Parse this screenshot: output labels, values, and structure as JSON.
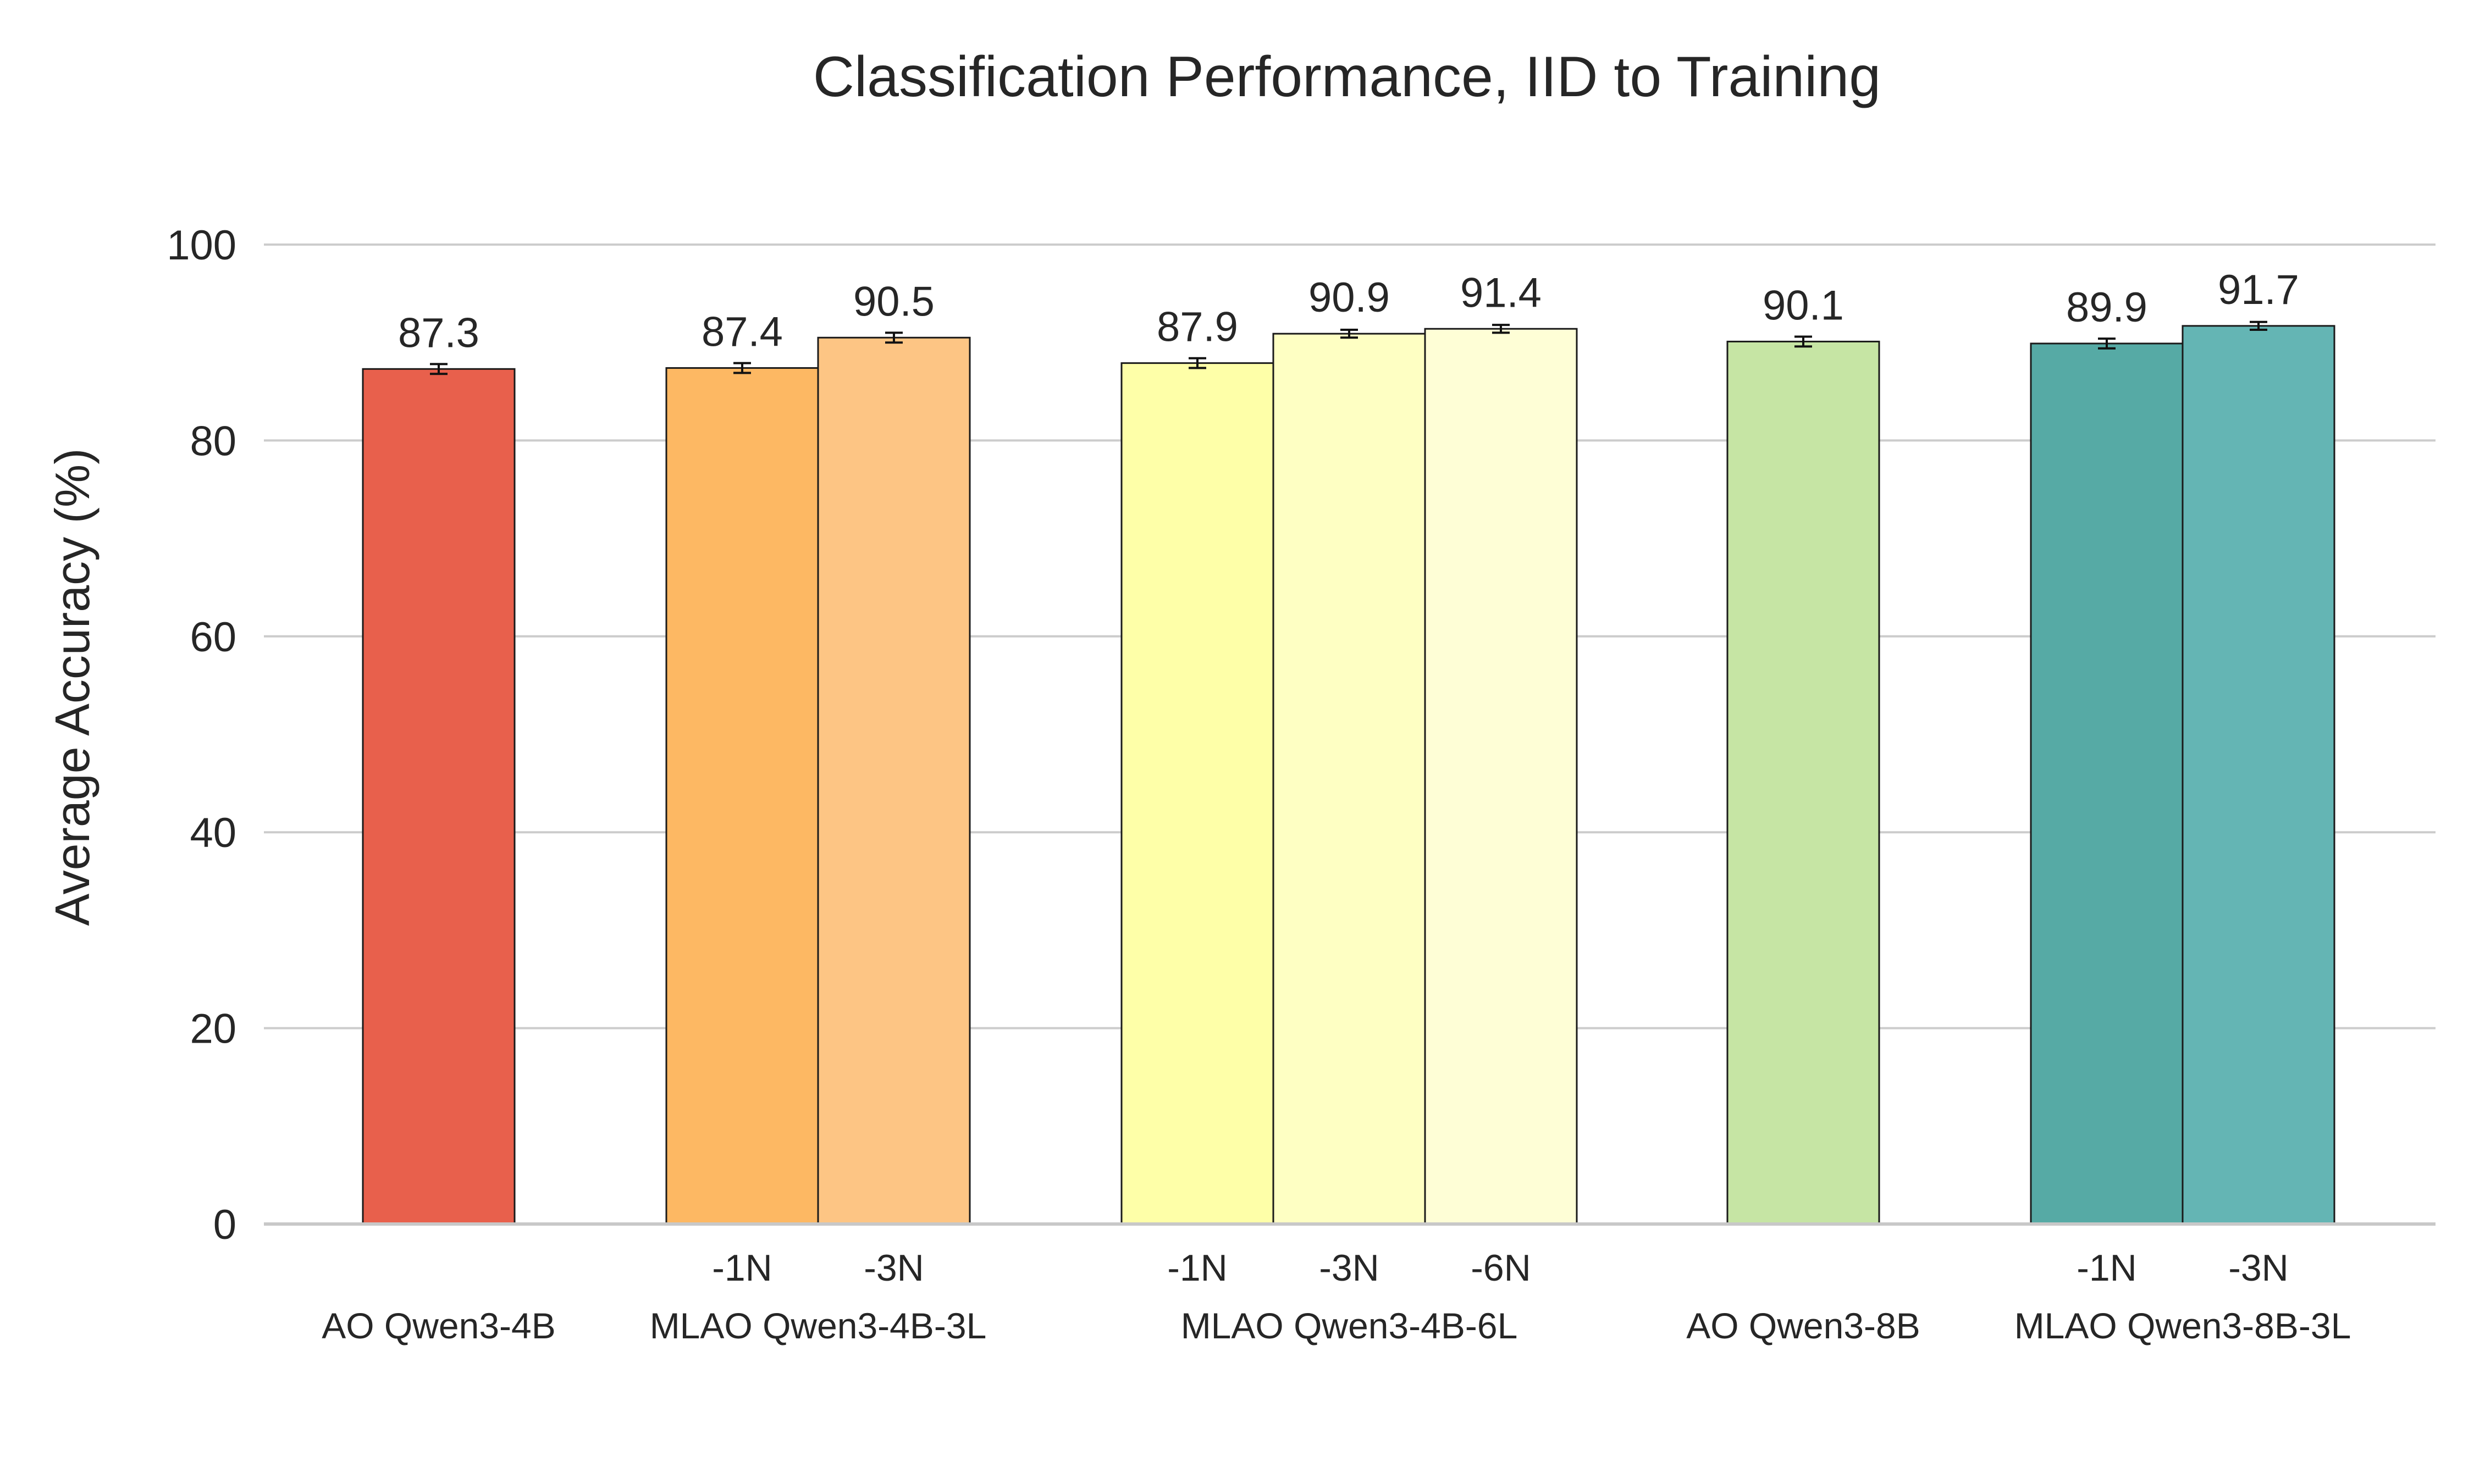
{
  "chart_data": {
    "type": "bar",
    "title": "Classification Performance, IID to Training",
    "xlabel": "",
    "ylabel": "Average Accuracy (%)",
    "ylim": [
      0,
      105
    ],
    "yticks": [
      0,
      20,
      40,
      60,
      80,
      100
    ],
    "grid": "horizontal",
    "groups": [
      {
        "name": "AO Qwen3-4B",
        "bars": [
          {
            "label": "",
            "value": 87.3,
            "value_label": "87.3",
            "error": 0.5,
            "color": "#e8604c"
          }
        ]
      },
      {
        "name": "MLAO Qwen3-4B-3L",
        "bars": [
          {
            "label": "-1N",
            "value": 87.4,
            "value_label": "87.4",
            "error": 0.5,
            "color": "#fdb863"
          },
          {
            "label": "-3N",
            "value": 90.5,
            "value_label": "90.5",
            "error": 0.5,
            "color": "#fdc584"
          }
        ]
      },
      {
        "name": "MLAO Qwen3-4B-6L",
        "bars": [
          {
            "label": "-1N",
            "value": 87.9,
            "value_label": "87.9",
            "error": 0.5,
            "color": "#feffa8"
          },
          {
            "label": "-3N",
            "value": 90.9,
            "value_label": "90.9",
            "error": 0.4,
            "color": "#feffc3"
          },
          {
            "label": "-6N",
            "value": 91.4,
            "value_label": "91.4",
            "error": 0.4,
            "color": "#fefed6"
          }
        ]
      },
      {
        "name": "AO Qwen3-8B",
        "bars": [
          {
            "label": "",
            "value": 90.1,
            "value_label": "90.1",
            "error": 0.5,
            "color": "#c6e5a4"
          }
        ]
      },
      {
        "name": "MLAO Qwen3-8B-3L",
        "bars": [
          {
            "label": "-1N",
            "value": 89.9,
            "value_label": "89.9",
            "error": 0.5,
            "color": "#56aaa5"
          },
          {
            "label": "-3N",
            "value": 91.7,
            "value_label": "91.7",
            "error": 0.4,
            "color": "#64b5b4"
          }
        ]
      }
    ]
  }
}
